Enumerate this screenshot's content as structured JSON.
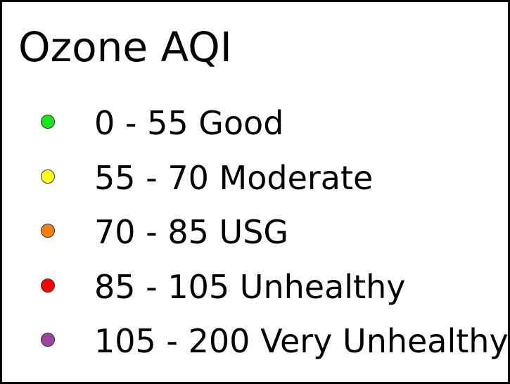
{
  "legend": {
    "title": "Ozone AQI",
    "items": [
      {
        "label": "0 - 55 Good",
        "color": "#1ee01e",
        "icon": "circle-icon"
      },
      {
        "label": "55 - 70 Moderate",
        "color": "#ffff1e",
        "icon": "circle-icon"
      },
      {
        "label": "70 - 85 USG",
        "color": "#ff7f0e",
        "icon": "circle-icon"
      },
      {
        "label": "85 - 105 Unhealthy",
        "color": "#ff0000",
        "icon": "circle-icon"
      },
      {
        "label": "105 - 200 Very Unhealthy",
        "color": "#9b479f",
        "icon": "circle-icon"
      }
    ]
  }
}
